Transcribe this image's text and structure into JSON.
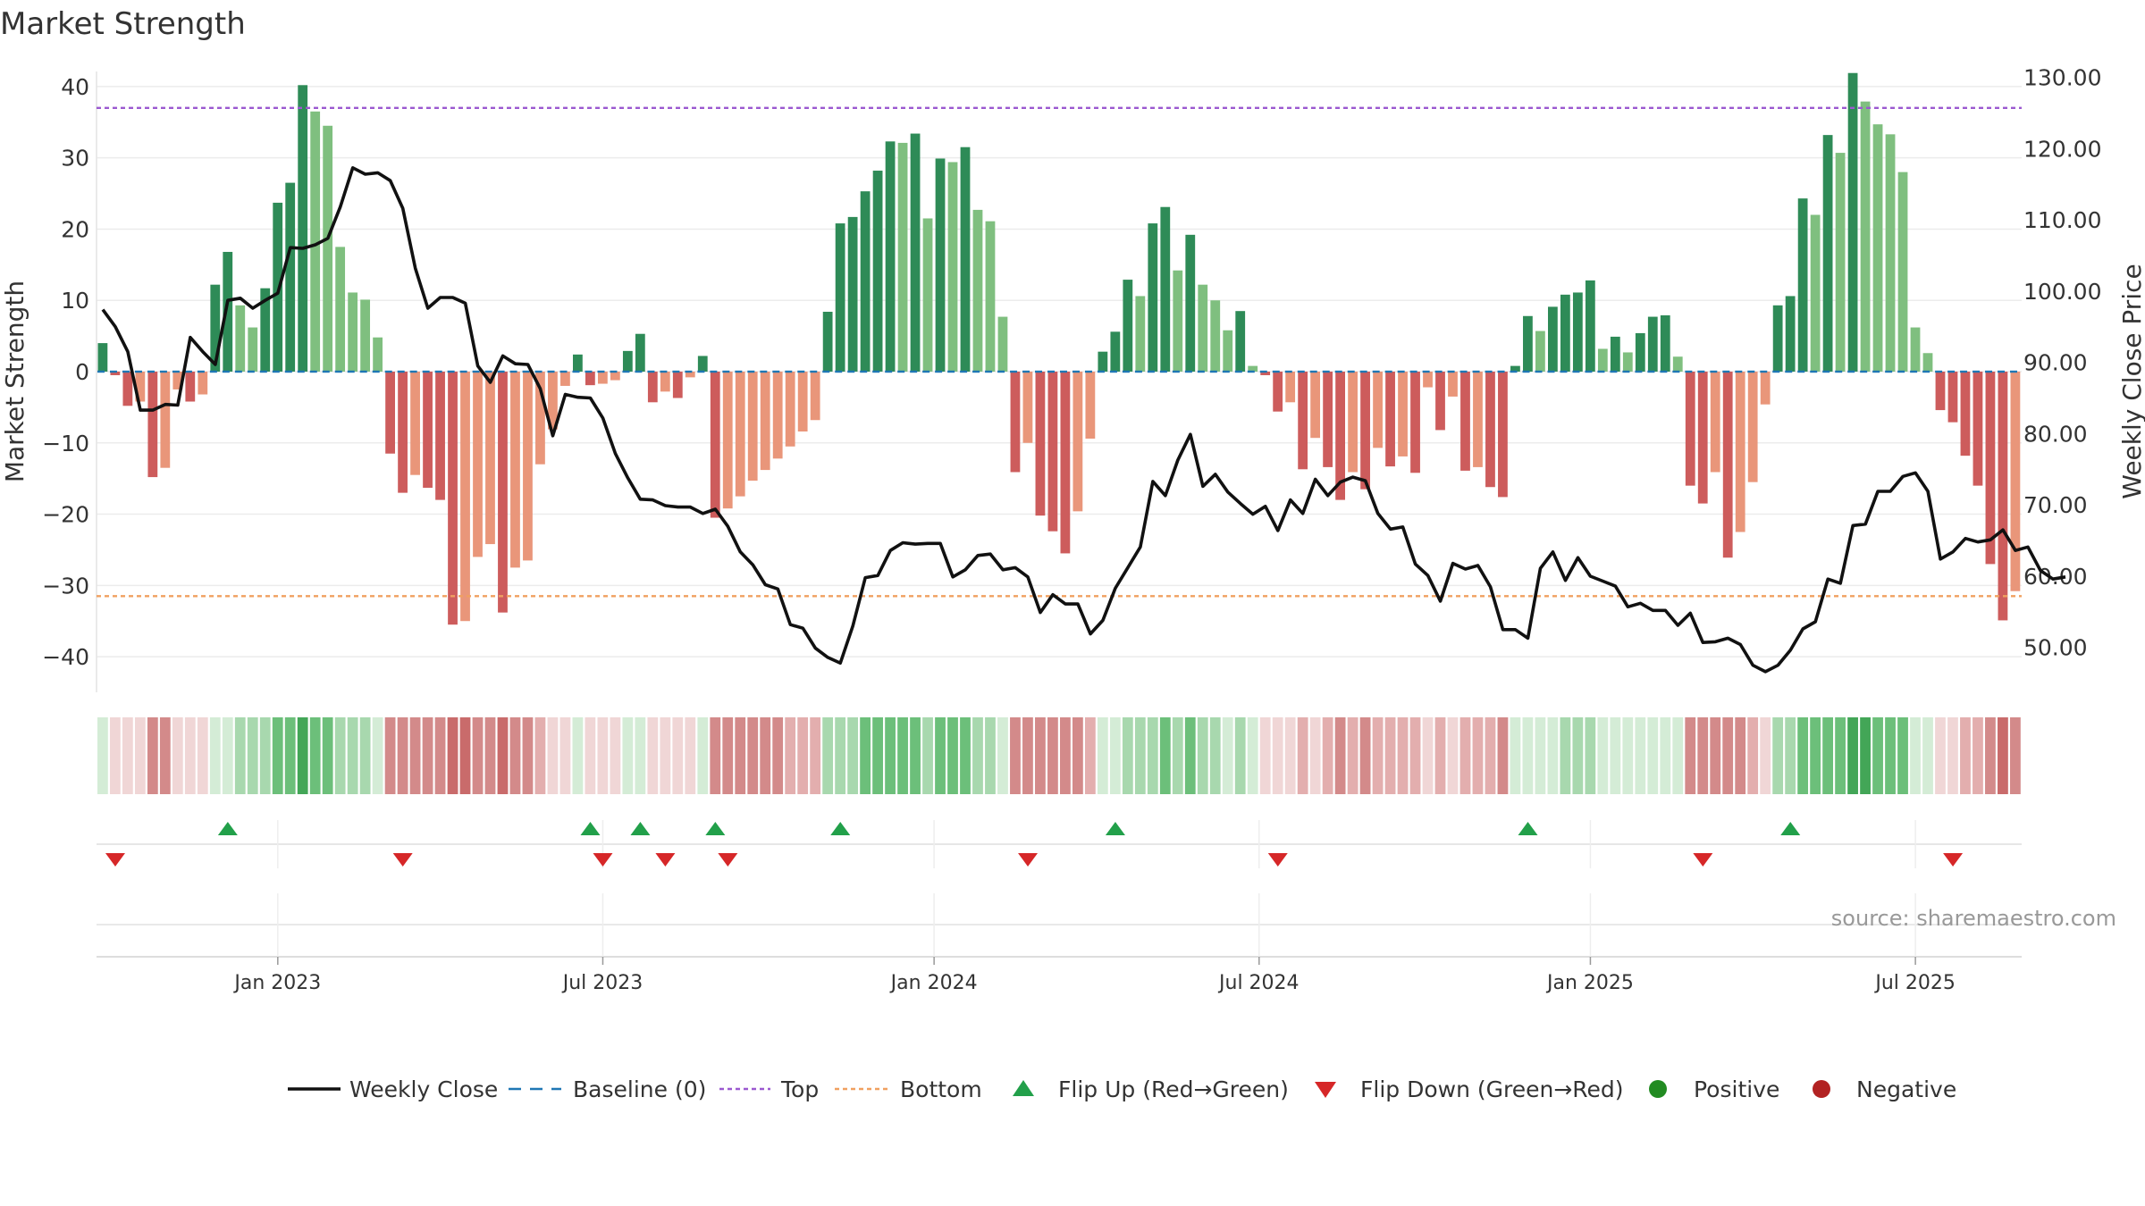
{
  "chart_data": {
    "type": "bar",
    "title": "Market Strength",
    "source": "source: sharemaestro.com",
    "ylabel_left": "Market Strength",
    "ylabel_right": "Weekly Close Price",
    "ylim_left": [
      -45,
      45
    ],
    "ylim_right": [
      43.7,
      133.7
    ],
    "yticks_left": [
      40,
      30,
      20,
      10,
      0,
      -10,
      -20,
      -30,
      -40
    ],
    "ytick_labels_left": [
      "40",
      "30",
      "20",
      "10",
      "0",
      "−10",
      "−20",
      "−30",
      "−40"
    ],
    "yticks_right": [
      130,
      120,
      110,
      100,
      90,
      80,
      70,
      60,
      50
    ],
    "ytick_labels_right": [
      "130.00",
      "120.00",
      "110.00",
      "100.00",
      "90.00",
      "80.00",
      "70.00",
      "60.00",
      "50.00"
    ],
    "top_level": 37,
    "bottom_level": -31.5,
    "x_ticks": [
      {
        "label": "Jan 2023",
        "week": 14.5
      },
      {
        "label": "Jul 2023",
        "week": 40.5
      },
      {
        "label": "Jan 2024",
        "week": 67
      },
      {
        "label": "Jul 2024",
        "week": 93
      },
      {
        "label": "Jan 2025",
        "week": 119.5
      },
      {
        "label": "Jul 2025",
        "week": 145.5
      }
    ],
    "series": [
      {
        "name": "Market Strength",
        "values": [
          4,
          -0.5,
          -4.8,
          -4.2,
          -14.8,
          -13.5,
          -2.5,
          -4.2,
          -3.2,
          12.2,
          16.8,
          9.3,
          6.2,
          11.7,
          23.7,
          26.5,
          40.2,
          36.5,
          34.5,
          17.5,
          11.1,
          10.1,
          4.8,
          -11.5,
          -17,
          -14.5,
          -16.3,
          -18,
          -35.5,
          -35,
          -26,
          -24.2,
          -33.8,
          -27.5,
          -26.5,
          -13,
          -8.1,
          -2,
          2.4,
          -1.9,
          -1.7,
          -1.2,
          2.9,
          5.3,
          -4.3,
          -2.8,
          -3.7,
          -0.8,
          2.2,
          -20.5,
          -19.2,
          -17.5,
          -15.3,
          -13.8,
          -12.2,
          -10.5,
          -8.4,
          -6.8,
          8.4,
          20.8,
          21.7,
          25.3,
          28.2,
          32.3,
          32.1,
          33.4,
          21.5,
          29.9,
          29.4,
          31.5,
          22.7,
          21.1,
          7.7,
          -14.1,
          -10,
          -20.2,
          -22.4,
          -25.5,
          -19.6,
          -9.4,
          2.8,
          5.6,
          12.9,
          10.6,
          20.8,
          23.1,
          14.2,
          19.2,
          12.2,
          10,
          5.8,
          8.5,
          0.8,
          -0.5,
          -5.6,
          -4.3,
          -13.7,
          -9.3,
          -13.4,
          -18,
          -14.1,
          -16.5,
          -10.7,
          -13.3,
          -11.9,
          -14.2,
          -2.2,
          -8.2,
          -3.5,
          -13.9,
          -13.4,
          -16.2,
          -17.6,
          0.8,
          7.8,
          5.7,
          9.1,
          10.8,
          11.1,
          12.8,
          3.2,
          4.9,
          2.7,
          5.4,
          7.7,
          7.9,
          2.1,
          -16,
          -18.5,
          -14.1,
          -26.1,
          -22.5,
          -15.5,
          -4.6,
          9.3,
          10.6,
          24.3,
          22,
          33.2,
          30.7,
          41.9,
          37.9,
          34.7,
          33.3,
          28,
          6.2,
          2.6,
          -5.4,
          -7.1,
          -11.8,
          -16,
          -27,
          -34.9,
          -30.8
        ]
      },
      {
        "name": "Weekly Close",
        "values": [
          97.4,
          95,
          91.5,
          83.3,
          83.3,
          84.1,
          84,
          93.5,
          91.5,
          89.7,
          98.7,
          99,
          97.6,
          98.7,
          99.7,
          106.1,
          106,
          106.5,
          107.4,
          111.8,
          117.3,
          116.4,
          116.6,
          115.5,
          111.6,
          103.2,
          97.6,
          99.1,
          99.1,
          98.3,
          89.5,
          87.2,
          90.9,
          89.8,
          89.7,
          86.3,
          79.7,
          85.5,
          85.1,
          85,
          82.2,
          77.2,
          73.8,
          70.8,
          70.7,
          69.9,
          69.7,
          69.7,
          68.8,
          69.4,
          67,
          63.4,
          61.6,
          58.8,
          58.2,
          53.2,
          52.7,
          49.9,
          48.6,
          47.8,
          53,
          59.8,
          60.1,
          63.6,
          64.7,
          64.5,
          64.6,
          64.6,
          59.9,
          60.9,
          62.9,
          63.1,
          60.9,
          61.2,
          59.9,
          54.9,
          57.4,
          56.1,
          56.1,
          51.9,
          53.8,
          58.3,
          61.2,
          64.1,
          73.3,
          71.3,
          76.3,
          79.9,
          72.6,
          74.3,
          71.8,
          70.2,
          68.7,
          69.8,
          66.4,
          70.7,
          68.8,
          73.6,
          71.3,
          73.2,
          73.9,
          73.4,
          68.8,
          66.6,
          66.9,
          61.7,
          60.1,
          56.5,
          61.8,
          61,
          61.5,
          58.5,
          52.5,
          52.5,
          51.3,
          61.1,
          63.4,
          59.4,
          62.6,
          60,
          59.3,
          58.6,
          55.7,
          56.2,
          55.2,
          55.2,
          53.1,
          54.8,
          50.7,
          50.8,
          51.3,
          50.4,
          47.5,
          46.6,
          47.5,
          49.6,
          52.6,
          53.6,
          59.6,
          59,
          67.1,
          67.3,
          71.9,
          71.9,
          74,
          74.5,
          71.9,
          62.4,
          63.4,
          65.3,
          64.8,
          65.1,
          66.5,
          63.6,
          64.1,
          60.8,
          59.6,
          59.9
        ]
      }
    ],
    "heat_strip": [
      1,
      1,
      1,
      1,
      3,
      3,
      1,
      1,
      1,
      1,
      1,
      2,
      2,
      2,
      3,
      3,
      4,
      3,
      3,
      2,
      2,
      2,
      1,
      3,
      3,
      3,
      3,
      3,
      4,
      4,
      3,
      3,
      4,
      3,
      3,
      2,
      1,
      1,
      1,
      1,
      1,
      1,
      1,
      1,
      1,
      1,
      1,
      1,
      1,
      3,
      3,
      3,
      3,
      3,
      3,
      2,
      2,
      2,
      2,
      2,
      2,
      3,
      3,
      3,
      3,
      3,
      2,
      3,
      3,
      3,
      2,
      2,
      1,
      3,
      3,
      3,
      3,
      3,
      3,
      2,
      1,
      1,
      2,
      2,
      2,
      3,
      2,
      3,
      2,
      2,
      1,
      2,
      1,
      1,
      1,
      1,
      2,
      1,
      2,
      3,
      2,
      3,
      2,
      2,
      2,
      2,
      1,
      2,
      1,
      2,
      2,
      2,
      3,
      1,
      1,
      1,
      1,
      2,
      2,
      2,
      1,
      1,
      1,
      1,
      1,
      1,
      1,
      3,
      3,
      3,
      3,
      3,
      2,
      1,
      2,
      2,
      3,
      3,
      3,
      3,
      4,
      4,
      3,
      3,
      3,
      1,
      1,
      1,
      1,
      2,
      2,
      3,
      4,
      3
    ],
    "flip_up_weeks": [
      10.5,
      39.5,
      43.5,
      49.5,
      59.5,
      81.5,
      114.5,
      135.5
    ],
    "flip_down_weeks": [
      1.5,
      24.5,
      40.5,
      45.5,
      50.5,
      74.5,
      94.5,
      128.5,
      148.5
    ],
    "legend": [
      "Weekly Close",
      "Baseline (0)",
      "Top",
      "Bottom",
      "Flip Up (Red→Green)",
      "Flip Down (Green→Red)",
      "Positive",
      "Negative"
    ],
    "colors": {
      "pos_strong": "#2e8b57",
      "pos_light": "#7fbf7f",
      "neg_strong": "#cd5c5c",
      "neg_light": "#e9967a",
      "line": "#111111",
      "baseline": "#1f77b4",
      "top": "#9b59d0",
      "bottom": "#f0a060",
      "flip_up": "#22a04a",
      "flip_down": "#d62728",
      "positive_dot": "#228b22",
      "negative_dot": "#b22222",
      "heat_green": [
        "#d4ecd6",
        "#a8d8ae",
        "#6cbf7a",
        "#43a657"
      ],
      "heat_red": [
        "#f0d6d6",
        "#e3aeae",
        "#d38a8a",
        "#c96b6b"
      ]
    }
  }
}
